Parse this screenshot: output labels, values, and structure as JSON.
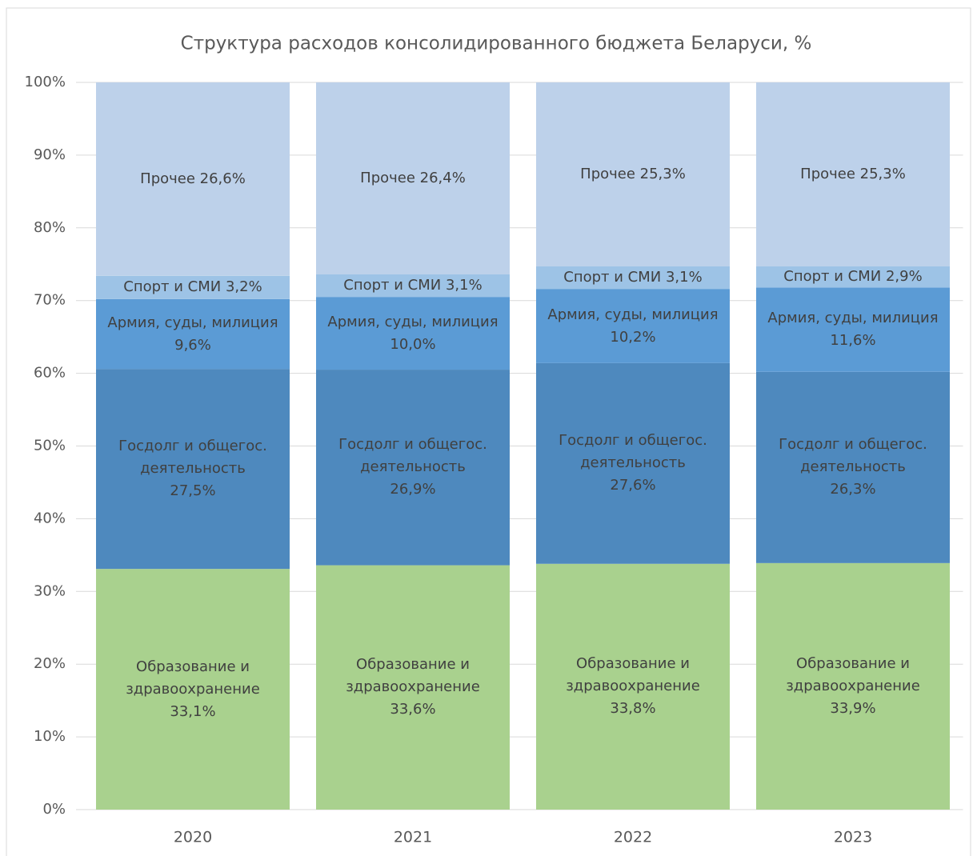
{
  "chart_data": {
    "type": "stacked_bar",
    "title": "Структура расходов консолидированного бюджета Беларуси, %",
    "categories": [
      "2020",
      "2021",
      "2022",
      "2023"
    ],
    "series": [
      {
        "color": "#a9d18e",
        "values": [
          33.1,
          33.6,
          33.8,
          33.9
        ],
        "value_labels": [
          "Образование и\nздравоохранение\n33,1%",
          "Образование и\nздравоохранение\n33,6%",
          "Образование и\nздравоохранение\n33,8%",
          "Образование и\nздравоохранение\n33,9%"
        ]
      },
      {
        "color": "#4e89be",
        "values": [
          27.5,
          26.9,
          27.6,
          26.3
        ],
        "value_labels": [
          "Госдолг и общегос.\nдеятельность\n27,5%",
          "Госдолг и общегос.\nдеятельность\n26,9%",
          "Госдолг и общегос.\nдеятельность\n27,6%",
          "Госдолг и общегос.\nдеятельность\n26,3%"
        ]
      },
      {
        "color": "#5b9bd5",
        "values": [
          9.6,
          10.0,
          10.2,
          11.6
        ],
        "value_labels": [
          "Армия, суды, милиция\n9,6%",
          "Армия, суды, милиция\n10,0%",
          "Армия, суды, милиция\n10,2%",
          "Армия, суды, милиция\n11,6%"
        ]
      },
      {
        "color": "#9dc3e6",
        "values": [
          3.2,
          3.1,
          3.1,
          2.9
        ],
        "value_labels": [
          "Спорт и СМИ 3,2%",
          "Спорт и СМИ 3,1%",
          "Спорт и СМИ 3,1%",
          "Спорт и СМИ 2,9%"
        ]
      },
      {
        "color": "#bdd1ea",
        "values": [
          26.6,
          26.4,
          25.3,
          25.3
        ],
        "value_labels": [
          "Прочее 26,6%",
          "Прочее 26,4%",
          "Прочее 25,3%",
          "Прочее 25,3%"
        ]
      }
    ],
    "ylim": [
      0,
      100
    ],
    "yticks": [
      {
        "value": 0,
        "label": "0%"
      },
      {
        "value": 10,
        "label": "10%"
      },
      {
        "value": 20,
        "label": "20%"
      },
      {
        "value": 30,
        "label": "30%"
      },
      {
        "value": 40,
        "label": "40%"
      },
      {
        "value": 50,
        "label": "50%"
      },
      {
        "value": 60,
        "label": "60%"
      },
      {
        "value": 70,
        "label": "70%"
      },
      {
        "value": 80,
        "label": "80%"
      },
      {
        "value": 90,
        "label": "90%"
      },
      {
        "value": 100,
        "label": "100%"
      }
    ],
    "grid": true
  }
}
